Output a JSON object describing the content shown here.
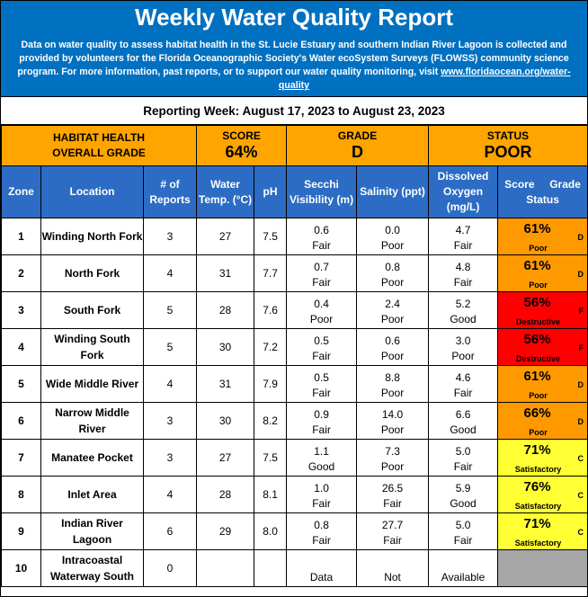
{
  "header": {
    "title": "Weekly Water Quality Report",
    "desc_text": "Data on water quality to assess habitat health in the St. Lucie Estuary and southern Indian River Lagoon is collected and provided by volunteers for the Florida Oceanographic Society's Water ecoSystem Surveys (FLOWSS) community science program.  For more information, past reports, or to support our water quality monitoring, visit ",
    "link": "www.floridaocean.org/water-quality"
  },
  "reporting_week": "Reporting Week: August 17, 2023 to August 23, 2023",
  "overall": {
    "label_line1": "HABITAT HEALTH",
    "label_line2": "OVERALL GRADE",
    "score_label": "SCORE",
    "score": "64%",
    "grade_label": "GRADE",
    "grade": "D",
    "status_label": "STATUS",
    "status": "POOR"
  },
  "columns": {
    "zone": "Zone",
    "location": "Location",
    "reports": "# of Reports",
    "temp": "Water Temp. (°C)",
    "ph": "pH",
    "secchi": "Secchi Visibility (m)",
    "salinity": "Salinity (ppt)",
    "oxygen": "Dissolved Oxygen (mg/L)",
    "score_status_a": "Score",
    "score_status_b": "Grade",
    "score_status_c": "Status"
  },
  "rows": [
    {
      "zone": "1",
      "location": "Winding North Fork",
      "reports": "3",
      "temp": "27",
      "ph": "7.5",
      "secchi": "0.6",
      "secchi_r": "Fair",
      "sal": "0.0",
      "sal_r": "Poor",
      "do": "4.7",
      "do_r": "Fair",
      "score": "61%",
      "grade": "D",
      "status": "Poor",
      "color": "#ff9900"
    },
    {
      "zone": "2",
      "location": "North Fork",
      "reports": "4",
      "temp": "31",
      "ph": "7.7",
      "secchi": "0.7",
      "secchi_r": "Fair",
      "sal": "0.8",
      "sal_r": "Poor",
      "do": "4.8",
      "do_r": "Fair",
      "score": "61%",
      "grade": "D",
      "status": "Poor",
      "color": "#ff9900"
    },
    {
      "zone": "3",
      "location": "South Fork",
      "reports": "5",
      "temp": "28",
      "ph": "7.6",
      "secchi": "0.4",
      "secchi_r": "Poor",
      "sal": "2.4",
      "sal_r": "Poor",
      "do": "5.2",
      "do_r": "Good",
      "score": "56%",
      "grade": "F",
      "status": "Destructive",
      "color": "#ff0000"
    },
    {
      "zone": "4",
      "location": "Winding South Fork",
      "reports": "5",
      "temp": "30",
      "ph": "7.2",
      "secchi": "0.5",
      "secchi_r": "Fair",
      "sal": "0.6",
      "sal_r": "Poor",
      "do": "3.0",
      "do_r": "Poor",
      "score": "56%",
      "grade": "F",
      "status": "Destructive",
      "color": "#ff0000"
    },
    {
      "zone": "5",
      "location": "Wide Middle River",
      "reports": "4",
      "temp": "31",
      "ph": "7.9",
      "secchi": "0.5",
      "secchi_r": "Fair",
      "sal": "8.8",
      "sal_r": "Poor",
      "do": "4.6",
      "do_r": "Fair",
      "score": "61%",
      "grade": "D",
      "status": "Poor",
      "color": "#ff9900"
    },
    {
      "zone": "6",
      "location": "Narrow Middle River",
      "reports": "3",
      "temp": "30",
      "ph": "8.2",
      "secchi": "0.9",
      "secchi_r": "Fair",
      "sal": "14.0",
      "sal_r": "Poor",
      "do": "6.6",
      "do_r": "Good",
      "score": "66%",
      "grade": "D",
      "status": "Poor",
      "color": "#ff9900"
    },
    {
      "zone": "7",
      "location": "Manatee Pocket",
      "reports": "3",
      "temp": "27",
      "ph": "7.5",
      "secchi": "1.1",
      "secchi_r": "Good",
      "sal": "7.3",
      "sal_r": "Poor",
      "do": "5.0",
      "do_r": "Fair",
      "score": "71%",
      "grade": "C",
      "status": "Satisfactory",
      "color": "#ffff33"
    },
    {
      "zone": "8",
      "location": "Inlet Area",
      "reports": "4",
      "temp": "28",
      "ph": "8.1",
      "secchi": "1.0",
      "secchi_r": "Fair",
      "sal": "26.5",
      "sal_r": "Fair",
      "do": "5.9",
      "do_r": "Good",
      "score": "76%",
      "grade": "C",
      "status": "Satisfactory",
      "color": "#ffff33"
    },
    {
      "zone": "9",
      "location": "Indian River Lagoon",
      "reports": "6",
      "temp": "29",
      "ph": "8.0",
      "secchi": "0.8",
      "secchi_r": "Fair",
      "sal": "27.7",
      "sal_r": "Fair",
      "do": "5.0",
      "do_r": "Fair",
      "score": "71%",
      "grade": "C",
      "status": "Satisfactory",
      "color": "#ffff33"
    }
  ],
  "last_row": {
    "zone": "10",
    "location": "Intracoastal Waterway South",
    "reports": "0",
    "secchi": "Data",
    "sal": "Not",
    "do": "Available"
  }
}
